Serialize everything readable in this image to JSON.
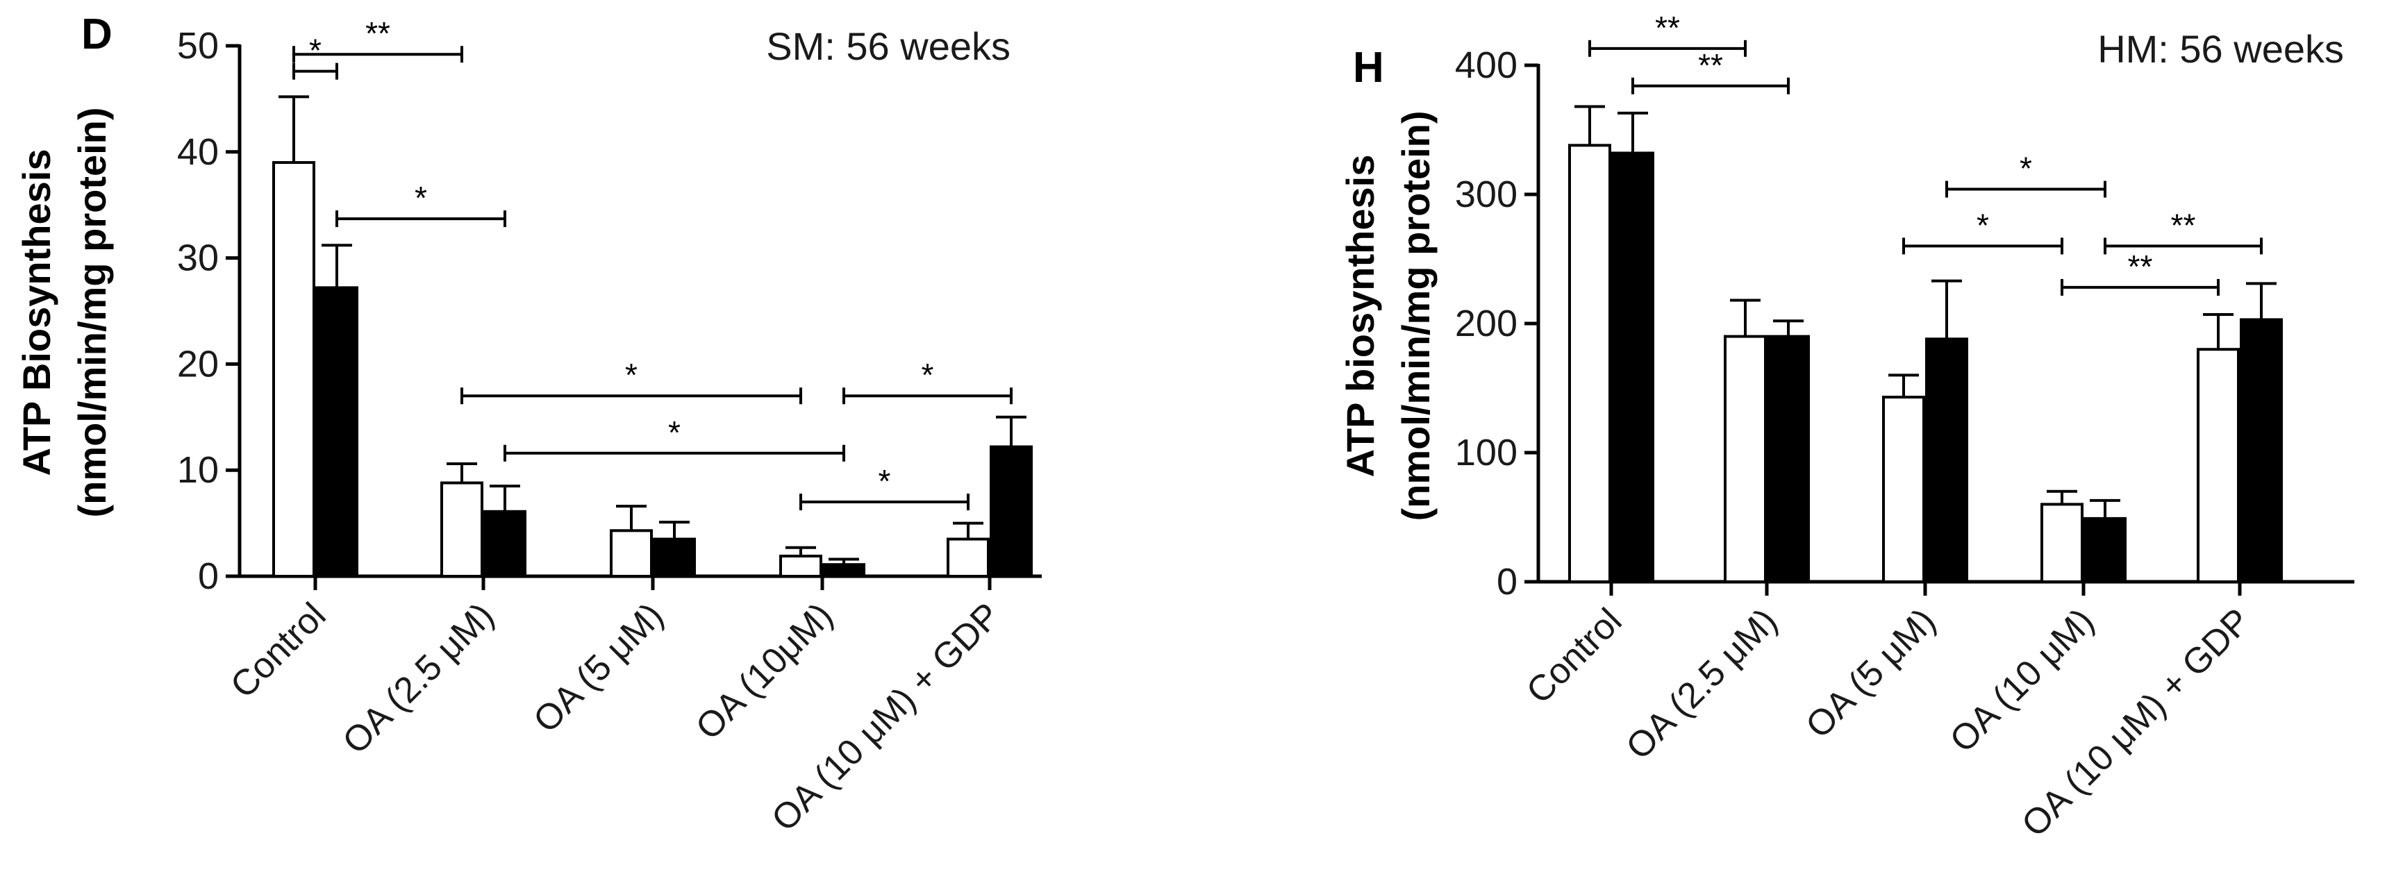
{
  "chart_data": [
    {
      "type": "bar",
      "panel_label": "D",
      "title": "SM: 56 weeks",
      "ylabel_line1": "ATP Biosynthesis",
      "ylabel_line2": "(nmol/min/mg protein)",
      "xlabel": "",
      "ylim": [
        0,
        50
      ],
      "yticks": [
        "0",
        "10",
        "20",
        "30",
        "40",
        "50"
      ],
      "ytick_values": [
        0,
        10,
        20,
        30,
        40,
        50
      ],
      "categories": [
        "Control",
        "OA (2.5 μM)",
        "OA (5 μM)",
        "OA (10μM)",
        "OA (10 μM) + GDP"
      ],
      "series": [
        {
          "name": "open",
          "fill": "#ffffff",
          "values": [
            39,
            8.8,
            4.3,
            1.9,
            3.5
          ],
          "errors": [
            6.2,
            1.8,
            2.3,
            0.8,
            1.5
          ]
        },
        {
          "name": "filled",
          "fill": "#000000",
          "values": [
            27.2,
            6.1,
            3.5,
            1.1,
            12.2
          ],
          "errors": [
            4.0,
            2.4,
            1.6,
            0.5,
            2.8
          ]
        }
      ],
      "significance": [
        {
          "label": "**",
          "from": [
            0,
            0
          ],
          "to": [
            1,
            0
          ],
          "level": 49.2
        },
        {
          "label": "*",
          "from": [
            0,
            0
          ],
          "to": [
            0,
            1
          ],
          "level": 47.6
        },
        {
          "label": "*",
          "from": [
            0,
            1
          ],
          "to": [
            1,
            1
          ],
          "level": 33.7
        },
        {
          "label": "*",
          "from": [
            1,
            0
          ],
          "to": [
            3,
            0
          ],
          "level": 17.0
        },
        {
          "label": "*",
          "from": [
            1,
            1
          ],
          "to": [
            3,
            1
          ],
          "level": 11.6
        },
        {
          "label": "*",
          "from": [
            3,
            1
          ],
          "to": [
            4,
            1
          ],
          "level": 17.0
        },
        {
          "label": "*",
          "from": [
            3,
            0
          ],
          "to": [
            4,
            0
          ],
          "level": 7.0
        }
      ]
    },
    {
      "type": "bar",
      "panel_label": "H",
      "title": "HM: 56 weeks",
      "ylabel_line1": "ATP biosynthesis",
      "ylabel_line2": "(nmol/min/mg protein)",
      "xlabel": "",
      "ylim": [
        0,
        400
      ],
      "yticks": [
        "0",
        "100",
        "200",
        "300",
        "400"
      ],
      "ytick_values": [
        0,
        100,
        200,
        300,
        400
      ],
      "categories": [
        "Control",
        "OA (2.5 μM)",
        "OA (5 μM)",
        "OA (10 μM)",
        "OA (10 μM) + GDP"
      ],
      "series": [
        {
          "name": "open",
          "fill": "#ffffff",
          "values": [
            338,
            190,
            143,
            60,
            180
          ],
          "errors": [
            30,
            28,
            17,
            10,
            27
          ]
        },
        {
          "name": "filled",
          "fill": "#000000",
          "values": [
            332,
            190,
            188,
            49,
            203
          ],
          "errors": [
            31,
            12,
            45,
            14,
            28
          ]
        }
      ],
      "significance": [
        {
          "label": "**",
          "from": [
            0,
            0
          ],
          "to": [
            1,
            0
          ],
          "level": 413
        },
        {
          "label": "**",
          "from": [
            0,
            1
          ],
          "to": [
            1,
            1
          ],
          "level": 384
        },
        {
          "label": "*",
          "from": [
            2,
            1
          ],
          "to": [
            3,
            1
          ],
          "level": 304
        },
        {
          "label": "*",
          "from": [
            2,
            0
          ],
          "to": [
            3,
            0
          ],
          "level": 260
        },
        {
          "label": "**",
          "from": [
            3,
            1
          ],
          "to": [
            4,
            1
          ],
          "level": 260
        },
        {
          "label": "**",
          "from": [
            3,
            0
          ],
          "to": [
            4,
            0
          ],
          "level": 228
        }
      ]
    }
  ]
}
